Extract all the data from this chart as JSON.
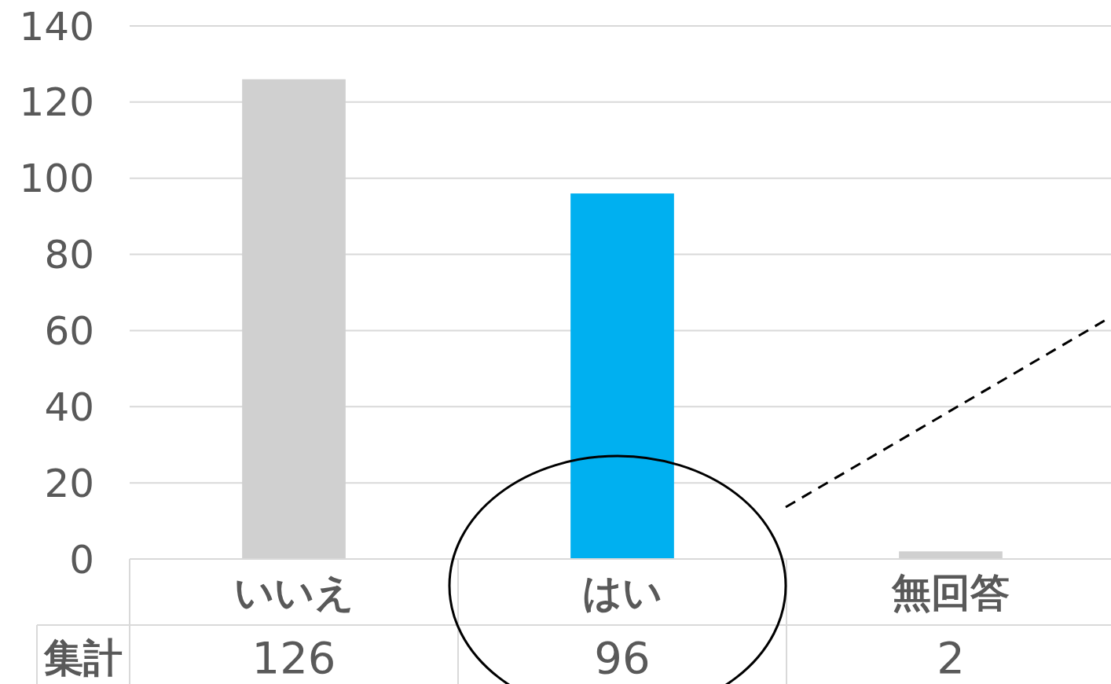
{
  "chart_data": {
    "type": "bar",
    "categories": [
      "いいえ",
      "はい",
      "無回答"
    ],
    "series": [
      {
        "name": "集計",
        "values": [
          126,
          96,
          2
        ],
        "colors": [
          "#d0d0d0",
          "#00b0f0",
          "#d0d0d0"
        ]
      }
    ],
    "ylim": [
      0,
      140
    ],
    "yticks": [
      0,
      20,
      40,
      60,
      80,
      100,
      120,
      140
    ],
    "grid": "y",
    "legend": "bottom",
    "data_labels": true
  }
}
